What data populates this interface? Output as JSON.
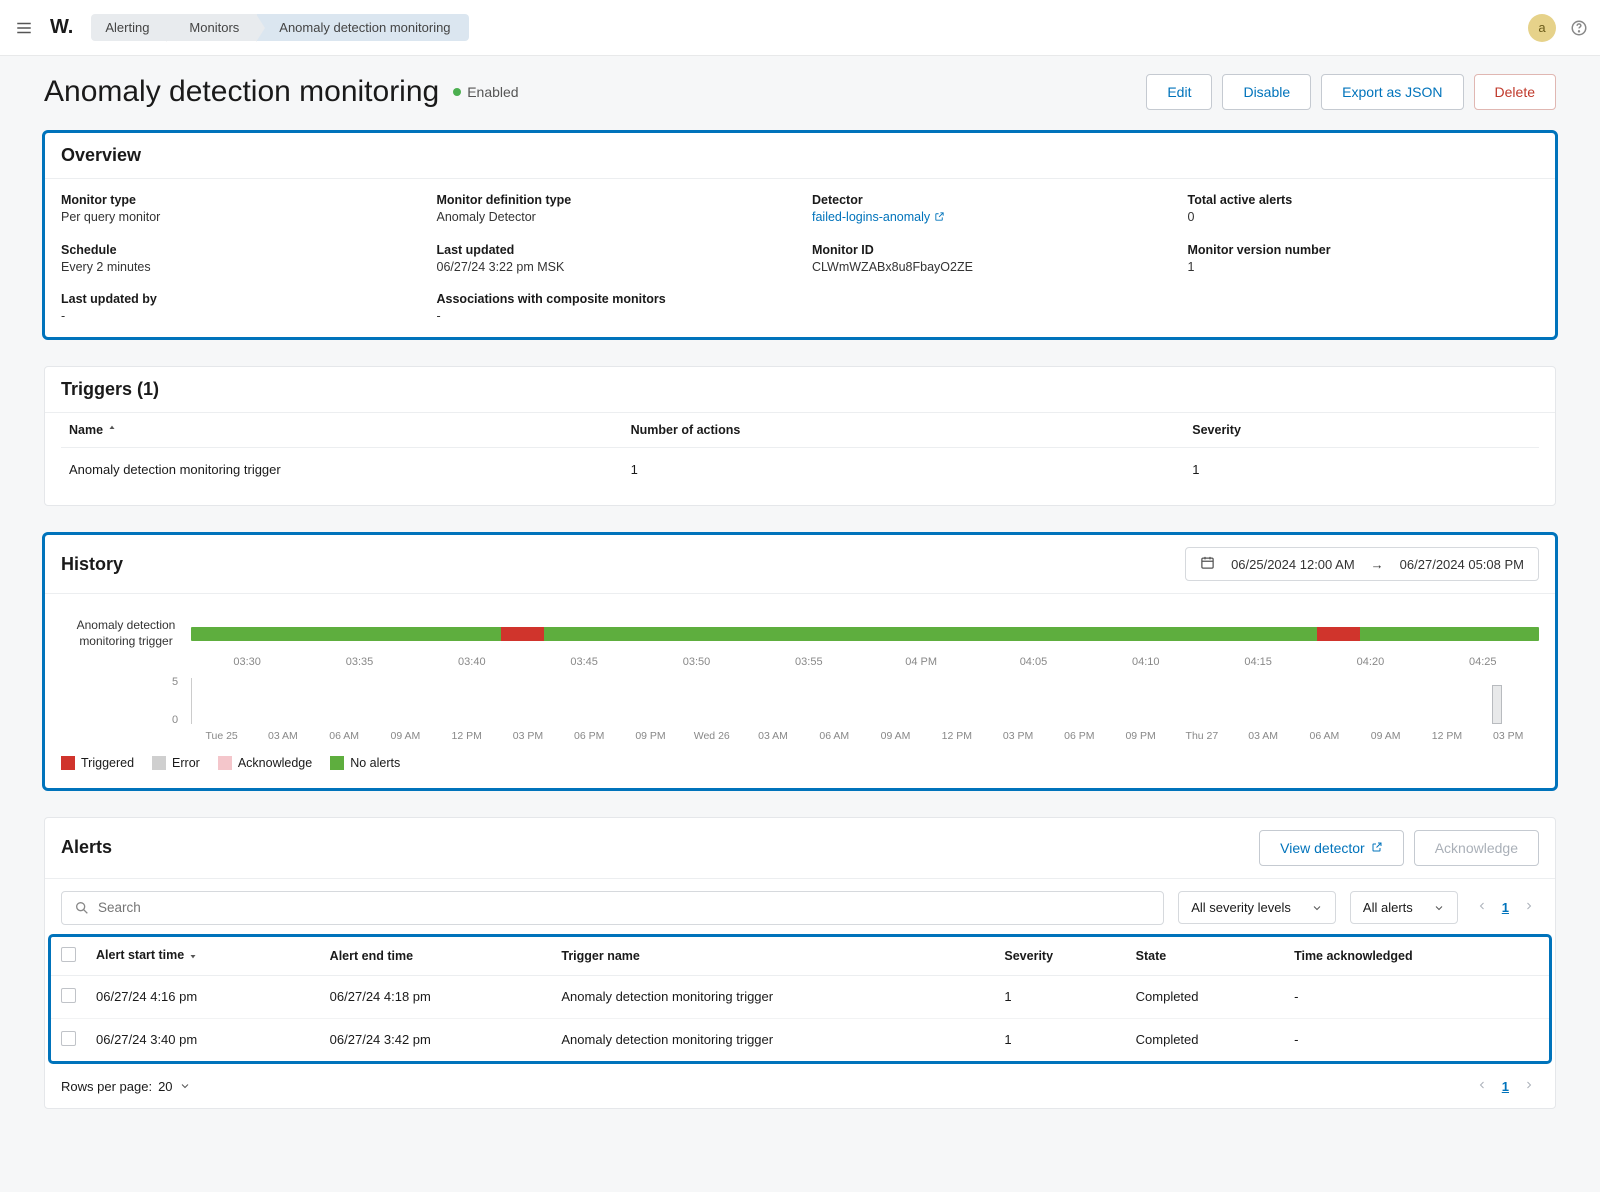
{
  "topbar": {
    "logo": "W.",
    "breadcrumbs": [
      "Alerting",
      "Monitors",
      "Anomaly detection monitoring"
    ],
    "avatar_initial": "a"
  },
  "header": {
    "title": "Anomaly detection monitoring",
    "status_label": "Enabled",
    "status_color": "#4caf50",
    "buttons": {
      "edit": "Edit",
      "disable": "Disable",
      "export": "Export as JSON",
      "delete": "Delete"
    }
  },
  "overview": {
    "title": "Overview",
    "fields": {
      "monitor_type": {
        "label": "Monitor type",
        "value": "Per query monitor"
      },
      "definition_type": {
        "label": "Monitor definition type",
        "value": "Anomaly Detector"
      },
      "detector": {
        "label": "Detector",
        "value": "failed-logins-anomaly"
      },
      "total_active": {
        "label": "Total active alerts",
        "value": "0"
      },
      "schedule": {
        "label": "Schedule",
        "value": "Every 2 minutes"
      },
      "last_updated": {
        "label": "Last updated",
        "value": "06/27/24 3:22 pm MSK"
      },
      "monitor_id": {
        "label": "Monitor ID",
        "value": "CLWmWZABx8u8FbayO2ZE"
      },
      "version": {
        "label": "Monitor version number",
        "value": "1"
      },
      "last_updated_by": {
        "label": "Last updated by",
        "value": "-"
      },
      "associations": {
        "label": "Associations with composite monitors",
        "value": "-"
      }
    }
  },
  "triggers": {
    "title": "Triggers (1)",
    "columns": {
      "name": "Name",
      "actions": "Number of actions",
      "severity": "Severity"
    },
    "rows": [
      {
        "name": "Anomaly detection monitoring trigger",
        "actions": "1",
        "severity": "1"
      }
    ]
  },
  "history": {
    "title": "History",
    "range_from": "06/25/2024 12:00 AM",
    "range_arrow": "→",
    "range_to": "06/27/2024 05:08 PM",
    "timeline_label": "Anomaly detection monitoring trigger",
    "timeline": {
      "background_color": "#5eae3e",
      "segments": [
        {
          "start_pct": 23.0,
          "width_pct": 3.2,
          "color": "#d0342c"
        },
        {
          "start_pct": 83.5,
          "width_pct": 3.2,
          "color": "#d0342c"
        }
      ],
      "ticks": [
        "03:30",
        "03:35",
        "03:40",
        "03:45",
        "03:50",
        "03:55",
        "04 PM",
        "04:05",
        "04:10",
        "04:15",
        "04:20",
        "04:25"
      ]
    },
    "mini": {
      "y_max": "5",
      "y_min": "0",
      "bar": {
        "left_pct": 96.5,
        "height_pct": 85
      },
      "ticks": [
        "Tue 25",
        "03 AM",
        "06 AM",
        "09 AM",
        "12 PM",
        "03 PM",
        "06 PM",
        "09 PM",
        "Wed 26",
        "03 AM",
        "06 AM",
        "09 AM",
        "12 PM",
        "03 PM",
        "06 PM",
        "09 PM",
        "Thu 27",
        "03 AM",
        "06 AM",
        "09 AM",
        "12 PM",
        "03 PM"
      ]
    },
    "legend": [
      {
        "label": "Triggered",
        "color": "#d0342c"
      },
      {
        "label": "Error",
        "color": "#cfcfcf"
      },
      {
        "label": "Acknowledge",
        "color": "#f4c6cb"
      },
      {
        "label": "No alerts",
        "color": "#5eae3e"
      }
    ]
  },
  "alerts": {
    "title": "Alerts",
    "view_detector": "View detector",
    "acknowledge": "Acknowledge",
    "search_placeholder": "Search",
    "filter_severity": "All severity levels",
    "filter_state": "All alerts",
    "page_current": "1",
    "columns": {
      "start": "Alert start time",
      "end": "Alert end time",
      "trigger": "Trigger name",
      "severity": "Severity",
      "state": "State",
      "ack": "Time acknowledged"
    },
    "rows": [
      {
        "start": "06/27/24 4:16 pm",
        "end": "06/27/24 4:18 pm",
        "trigger": "Anomaly detection monitoring trigger",
        "severity": "1",
        "state": "Completed",
        "ack": "-"
      },
      {
        "start": "06/27/24 3:40 pm",
        "end": "06/27/24 3:42 pm",
        "trigger": "Anomaly detection monitoring trigger",
        "severity": "1",
        "state": "Completed",
        "ack": "-"
      }
    ],
    "rows_per_page_label": "Rows per page:",
    "rows_per_page_value": "20"
  }
}
